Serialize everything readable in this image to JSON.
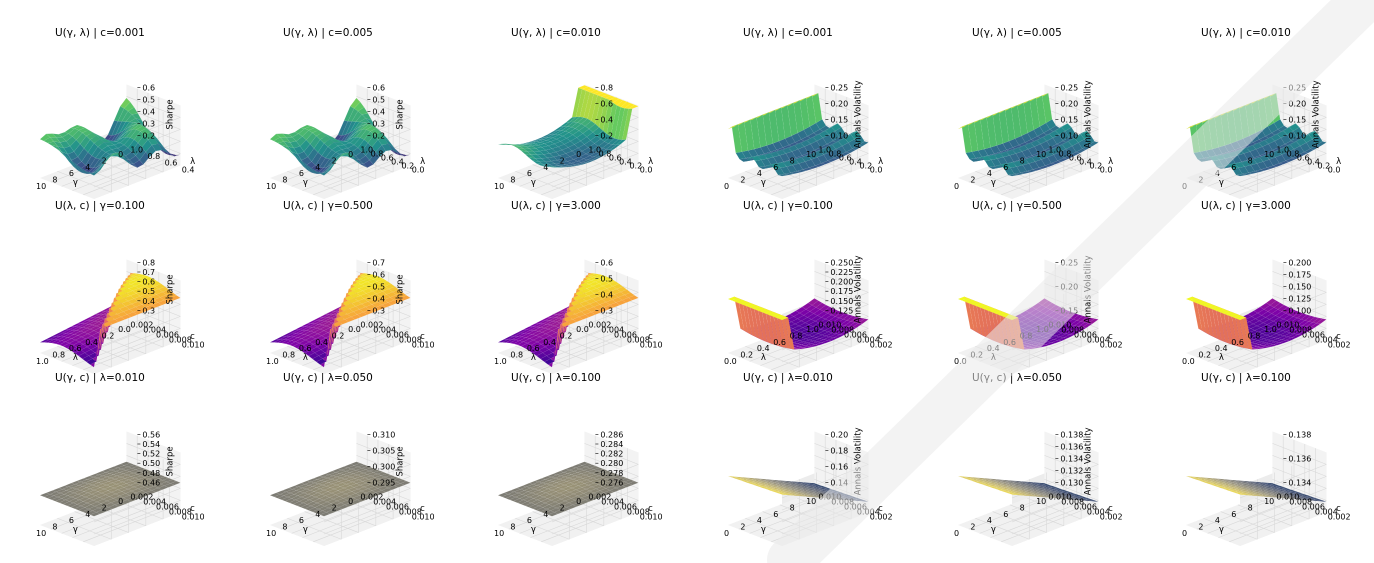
{
  "colors": {
    "background": "#ffffff",
    "pane_back": "#ececec",
    "pane_side": "#f3f3f3",
    "grid": "#d8d8d8",
    "watermark": "#e6e6e6"
  },
  "chart_data": [
    {
      "type": "surface",
      "title": "U(γ, λ) | c=0.001",
      "colormap": "viridis",
      "zlabel": "Sharpe",
      "ztick_side": "right",
      "zticks": [
        "0.6",
        "0.5",
        "0.4",
        "0.3",
        "0.2"
      ],
      "x_ticks": [
        "10",
        "8",
        "6",
        "4",
        "2",
        "0"
      ],
      "x_label": "γ",
      "y_ticks": [
        "1.0",
        "0.8",
        "0.6",
        "0.4"
      ],
      "y_label": "λ",
      "shape": "peaky",
      "zlim": [
        0.2,
        0.6
      ]
    },
    {
      "type": "surface",
      "title": "U(γ, λ) | c=0.005",
      "colormap": "viridis",
      "zlabel": "Sharpe",
      "ztick_side": "right",
      "zticks": [
        "0.6",
        "0.5",
        "0.4",
        "0.3",
        "0.2"
      ],
      "x_ticks": [
        "10",
        "8",
        "6",
        "4",
        "2",
        "0"
      ],
      "x_label": "γ",
      "y_ticks": [
        "1.0",
        "0.8",
        "0.6",
        "0.4",
        "0.2",
        "0.0"
      ],
      "y_label": "λ",
      "shape": "peaky",
      "zlim": [
        0.2,
        0.6
      ]
    },
    {
      "type": "surface",
      "title": "U(γ, λ) | c=0.010",
      "colormap": "viridis",
      "zlabel": "",
      "ztick_side": "right",
      "zticks": [
        "0.8",
        "0.6",
        "0.4",
        "0.2"
      ],
      "x_ticks": [
        "10",
        "8",
        "6",
        "4",
        "2",
        "0"
      ],
      "x_label": "γ",
      "y_ticks": [
        "1.0",
        "0.8",
        "0.6",
        "0.4",
        "0.2",
        "0.0"
      ],
      "y_label": "λ",
      "shape": "bowl",
      "zlim": [
        0.2,
        0.8
      ]
    },
    {
      "type": "surface",
      "title": "U(γ, λ) | c=0.001",
      "colormap": "viridis",
      "zlabel": "Annals Volatility",
      "ztick_side": "right",
      "zticks": [
        "0.25",
        "0.20",
        "0.15",
        "0.10"
      ],
      "x_ticks": [
        "0",
        "2",
        "4",
        "6",
        "8",
        "10"
      ],
      "x_label": "γ",
      "y_ticks": [
        "1.0",
        "0.8",
        "0.6",
        "0.4",
        "0.2",
        "0.0"
      ],
      "y_label": "λ",
      "shape": "wall",
      "zlim": [
        0.1,
        0.25
      ]
    },
    {
      "type": "surface",
      "title": "U(γ, λ) | c=0.005",
      "colormap": "viridis",
      "zlabel": "Annals Volatility",
      "ztick_side": "right",
      "zticks": [
        "0.25",
        "0.20",
        "0.15",
        "0.10"
      ],
      "x_ticks": [
        "0",
        "2",
        "4",
        "6",
        "8",
        "10"
      ],
      "x_label": "γ",
      "y_ticks": [
        "1.0",
        "0.8",
        "0.6",
        "0.4",
        "0.2",
        "0.0"
      ],
      "y_label": "λ",
      "shape": "wall",
      "zlim": [
        0.1,
        0.25
      ]
    },
    {
      "type": "surface",
      "title": "U(γ, λ) | c=0.010",
      "colormap": "viridis",
      "zlabel": "Annals Volatility",
      "ztick_side": "right",
      "zticks": [
        "0.25",
        "0.20",
        "0.15",
        "0.10"
      ],
      "x_ticks": [
        "0",
        "2",
        "4",
        "6",
        "8",
        "10"
      ],
      "x_label": "γ",
      "y_ticks": [
        "1.0",
        "0.8",
        "0.6",
        "0.4",
        "0.2",
        "0.0"
      ],
      "y_label": "λ",
      "shape": "wall",
      "zlim": [
        0.1,
        0.25
      ]
    },
    {
      "type": "surface",
      "title": "U(λ, c) | γ=0.100",
      "colormap": "plasma",
      "zlabel": "Sharpe",
      "ztick_side": "right",
      "zticks": [
        "0.8",
        "0.7",
        "0.6",
        "0.5",
        "0.4",
        "0.3"
      ],
      "x_ticks": [
        "1.0",
        "0.8",
        "0.6",
        "0.4",
        "0.2",
        "0.0"
      ],
      "x_label": "λ",
      "y_ticks": [
        "0.002",
        "0.004",
        "0.006",
        "0.008",
        "0.010"
      ],
      "y_label": "c",
      "shape": "fold",
      "zlim": [
        0.3,
        0.8
      ]
    },
    {
      "type": "surface",
      "title": "U(λ, c) | γ=0.500",
      "colormap": "plasma",
      "zlabel": "Sharpe",
      "ztick_side": "right",
      "zticks": [
        "0.7",
        "0.6",
        "0.5",
        "0.4",
        "0.3"
      ],
      "x_ticks": [
        "1.0",
        "0.8",
        "0.6",
        "0.4",
        "0.2",
        "0.0"
      ],
      "x_label": "λ",
      "y_ticks": [
        "0.002",
        "0.004",
        "0.006",
        "0.008",
        "0.010"
      ],
      "y_label": "c",
      "shape": "fold",
      "zlim": [
        0.3,
        0.7
      ]
    },
    {
      "type": "surface",
      "title": "U(λ, c) | γ=3.000",
      "colormap": "plasma",
      "zlabel": "",
      "ztick_side": "right",
      "zticks": [
        "0.6",
        "0.5",
        "0.4",
        "0.3"
      ],
      "x_ticks": [
        "1.0",
        "0.8",
        "0.6",
        "0.4",
        "0.2",
        "0.0"
      ],
      "x_label": "λ",
      "y_ticks": [
        "0.002",
        "0.004",
        "0.006",
        "0.008",
        "0.010"
      ],
      "y_label": "c",
      "shape": "fold",
      "zlim": [
        0.3,
        0.6
      ]
    },
    {
      "type": "surface",
      "title": "U(λ, c) | γ=0.100",
      "colormap": "plasma",
      "zlabel": "Annals Volatility",
      "ztick_side": "right",
      "zticks": [
        "0.250",
        "0.225",
        "0.200",
        "0.175",
        "0.150",
        "0.125"
      ],
      "x_ticks": [
        "0.0",
        "0.2",
        "0.4",
        "0.6",
        "0.8",
        "1.0"
      ],
      "x_label": "λ",
      "y_ticks": [
        "0.010",
        "0.008",
        "0.006",
        "0.004",
        "0.002"
      ],
      "y_label": "c",
      "shape": "wallbowl",
      "zlim": [
        0.125,
        0.25
      ]
    },
    {
      "type": "surface",
      "title": "U(λ, c) | γ=0.500",
      "colormap": "plasma",
      "zlabel": "Annals Volatility",
      "ztick_side": "right",
      "zticks": [
        "0.25",
        "0.20",
        "0.15"
      ],
      "x_ticks": [
        "0.0",
        "0.2",
        "0.4",
        "0.6",
        "0.8",
        "1.0"
      ],
      "x_label": "λ",
      "y_ticks": [
        "0.010",
        "0.008",
        "0.006",
        "0.004",
        "0.002"
      ],
      "y_label": "c",
      "shape": "wallbowl",
      "zlim": [
        0.15,
        0.25
      ]
    },
    {
      "type": "surface",
      "title": "U(λ, c) | γ=3.000",
      "colormap": "plasma",
      "zlabel": "",
      "ztick_side": "right",
      "zticks": [
        "0.200",
        "0.175",
        "0.150",
        "0.125",
        "0.100"
      ],
      "x_ticks": [
        "0.0",
        "0.2",
        "0.4",
        "0.6",
        "0.8",
        "1.0"
      ],
      "x_label": "λ",
      "y_ticks": [
        "0.010",
        "0.008",
        "0.006",
        "0.004",
        "0.002"
      ],
      "y_label": "c",
      "shape": "wallbowl",
      "zlim": [
        0.1,
        0.2
      ]
    },
    {
      "type": "surface",
      "title": "U(γ, c) | λ=0.010",
      "colormap": "cividis",
      "zlabel": "Sharpe",
      "ztick_side": "right",
      "zticks": [
        "0.56",
        "0.54",
        "0.52",
        "0.50",
        "0.48",
        "0.46"
      ],
      "x_ticks": [
        "10",
        "8",
        "6",
        "4",
        "2",
        "0"
      ],
      "x_label": "γ",
      "y_ticks": [
        "0.002",
        "0.004",
        "0.006",
        "0.008",
        "0.010"
      ],
      "y_label": "c",
      "shape": "flat",
      "zlim": [
        0.46,
        0.56
      ]
    },
    {
      "type": "surface",
      "title": "U(γ, c) | λ=0.050",
      "colormap": "cividis",
      "zlabel": "Sharpe",
      "ztick_side": "right",
      "zticks": [
        "0.310",
        "0.305",
        "0.300",
        "0.295"
      ],
      "x_ticks": [
        "10",
        "8",
        "6",
        "4",
        "2",
        "0"
      ],
      "x_label": "γ",
      "y_ticks": [
        "0.002",
        "0.004",
        "0.006",
        "0.008",
        "0.010"
      ],
      "y_label": "c",
      "shape": "flat",
      "zlim": [
        0.295,
        0.31
      ]
    },
    {
      "type": "surface",
      "title": "U(γ, c) | λ=0.100",
      "colormap": "cividis",
      "zlabel": "",
      "ztick_side": "right",
      "zticks": [
        "0.286",
        "0.284",
        "0.282",
        "0.280",
        "0.278",
        "0.276"
      ],
      "x_ticks": [
        "10",
        "8",
        "6",
        "4",
        "2",
        "0"
      ],
      "x_label": "γ",
      "y_ticks": [
        "0.002",
        "0.004",
        "0.006",
        "0.008",
        "0.010"
      ],
      "y_label": "c",
      "shape": "flat",
      "zlim": [
        0.276,
        0.286
      ]
    },
    {
      "type": "surface",
      "title": "U(γ, c) | λ=0.010",
      "colormap": "cividis",
      "zlabel": "Annals Volatility",
      "ztick_side": "right",
      "zticks": [
        "0.20",
        "0.18",
        "0.16",
        "0.14"
      ],
      "x_ticks": [
        "0",
        "2",
        "4",
        "6",
        "8",
        "10"
      ],
      "x_label": "γ",
      "y_ticks": [
        "0.010",
        "0.008",
        "0.006",
        "0.004",
        "0.002"
      ],
      "y_label": "c",
      "shape": "ramp",
      "zlim": [
        0.14,
        0.2
      ]
    },
    {
      "type": "surface",
      "title": "U(γ, c) | λ=0.050",
      "colormap": "cividis",
      "zlabel": "Annals Volatility",
      "ztick_side": "right",
      "zticks": [
        "0.138",
        "0.136",
        "0.134",
        "0.132",
        "0.130"
      ],
      "x_ticks": [
        "0",
        "2",
        "4",
        "6",
        "8",
        "10"
      ],
      "x_label": "γ",
      "y_ticks": [
        "0.010",
        "0.008",
        "0.006",
        "0.004",
        "0.002"
      ],
      "y_label": "c",
      "shape": "ramp",
      "zlim": [
        0.13,
        0.138
      ]
    },
    {
      "type": "surface",
      "title": "U(γ, c) | λ=0.100",
      "colormap": "cividis",
      "zlabel": "",
      "ztick_side": "right",
      "zticks": [
        "0.138",
        "0.136",
        "0.134"
      ],
      "x_ticks": [
        "0",
        "2",
        "4",
        "6",
        "8",
        "10"
      ],
      "x_label": "γ",
      "y_ticks": [
        "0.010",
        "0.008",
        "0.006",
        "0.004",
        "0.002"
      ],
      "y_label": "c",
      "shape": "ramp",
      "zlim": [
        0.134,
        0.138
      ]
    }
  ]
}
